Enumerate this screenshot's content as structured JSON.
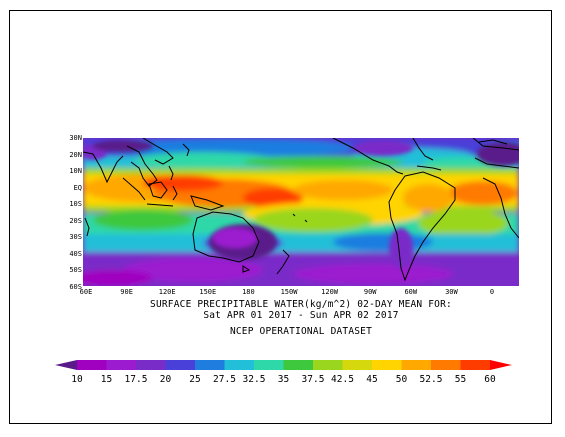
{
  "map": {
    "lat_labels": [
      "30N",
      "20N",
      "10N",
      "EQ",
      "10S",
      "20S",
      "30S",
      "40S",
      "50S",
      "60S"
    ],
    "lon_labels": [
      "60E",
      "90E",
      "120E",
      "150E",
      "180",
      "150W",
      "120W",
      "90W",
      "60W",
      "30W",
      "0"
    ],
    "caption_line1": "SURFACE PRECIPITABLE WATER(kg/m^2)   02-DAY MEAN FOR:",
    "caption_line2": "Sat APR 01 2017 - Sun APR 02 2017",
    "caption_line3": "NCEP OPERATIONAL DATASET"
  },
  "colorbar": {
    "levels": [
      "10",
      "15",
      "17.5",
      "20",
      "25",
      "27.5",
      "32.5",
      "35",
      "37.5",
      "42.5",
      "45",
      "50",
      "52.5",
      "55",
      "60"
    ],
    "colors": [
      "#5a1a8a",
      "#a000c0",
      "#9c1ad0",
      "#7a2cc8",
      "#4840d8",
      "#1f7de0",
      "#22bfd8",
      "#2ed8a8",
      "#3ec83e",
      "#9ad61e",
      "#d6d80e",
      "#ffd400",
      "#ffa800",
      "#ff7a00",
      "#ff3c00",
      "#ff0000"
    ]
  }
}
